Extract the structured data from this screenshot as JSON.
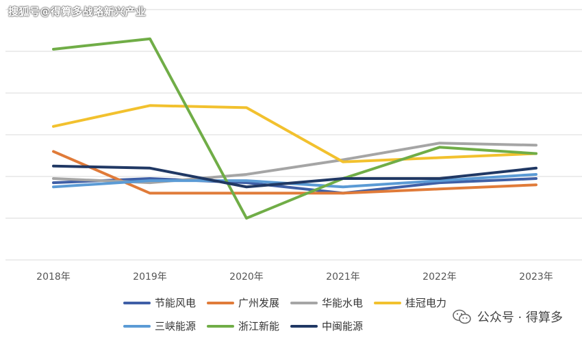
{
  "watermark": "搜狐号@得算多战略新兴产业",
  "credit": {
    "text": "公众号 · 得算多",
    "icon": "wechat-icon"
  },
  "chart_data": {
    "type": "line",
    "title": "",
    "xlabel": "",
    "ylabel": "",
    "categories": [
      "2018年",
      "2019年",
      "2020年",
      "2021年",
      "2022年",
      "2023年"
    ],
    "y_axis_labels_shown": false,
    "ylim": [
      0,
      6
    ],
    "grid": true,
    "legend_position": "bottom",
    "series": [
      {
        "name": "节能风电",
        "color": "#3F5FA6",
        "values": [
          1.85,
          1.95,
          1.85,
          1.6,
          1.85,
          1.95
        ]
      },
      {
        "name": "广州发展",
        "color": "#E07B39",
        "values": [
          2.6,
          1.6,
          1.6,
          1.6,
          1.7,
          1.8
        ]
      },
      {
        "name": "华能水电",
        "color": "#A5A5A5",
        "values": [
          1.95,
          1.85,
          2.05,
          2.4,
          2.8,
          2.75
        ]
      },
      {
        "name": "桂冠电力",
        "color": "#F2C12E",
        "values": [
          3.2,
          3.7,
          3.65,
          2.35,
          2.45,
          2.55
        ]
      },
      {
        "name": "三峡能源",
        "color": "#5B9BD5",
        "values": [
          1.75,
          1.9,
          1.9,
          1.75,
          1.9,
          2.05
        ]
      },
      {
        "name": "浙江新能",
        "color": "#70AD47",
        "values": [
          5.05,
          5.3,
          1.0,
          1.95,
          2.7,
          2.55
        ]
      },
      {
        "name": "中闽能源",
        "color": "#203864",
        "values": [
          2.25,
          2.2,
          1.75,
          1.95,
          1.95,
          2.2
        ]
      }
    ]
  }
}
